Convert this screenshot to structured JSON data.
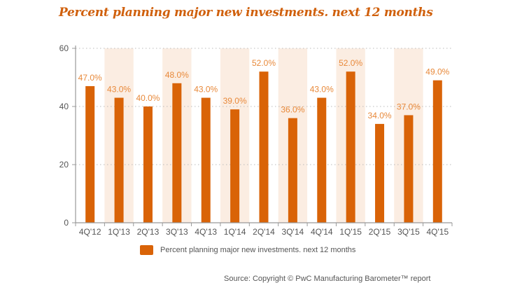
{
  "chart_data": {
    "type": "bar",
    "title": "Percent planning major new investments. next 12 months",
    "categories": [
      "4Q'12",
      "1Q'13",
      "2Q'13",
      "3Q'13",
      "4Q'13",
      "1Q'14",
      "2Q'14",
      "3Q'14",
      "4Q'14",
      "1Q'15",
      "2Q'15",
      "3Q'15",
      "4Q'15"
    ],
    "series": [
      {
        "name": "Percent planning major new investments. next 12 months",
        "values": [
          47.0,
          43.0,
          40.0,
          48.0,
          43.0,
          39.0,
          52.0,
          36.0,
          43.0,
          52.0,
          34.0,
          37.0,
          49.0
        ],
        "labels": [
          "47.0%",
          "43.0%",
          "40.0%",
          "48.0%",
          "43.0%",
          "39.0%",
          "52.0%",
          "36.0%",
          "43.0%",
          "52.0%",
          "34.0%",
          "37.0%",
          "49.0%"
        ],
        "color": "#d96307"
      }
    ],
    "xlabel": "",
    "ylabel": "",
    "ylim": [
      0,
      60
    ],
    "yticks": [
      "0",
      "20",
      "40",
      "60"
    ],
    "ytick_values": [
      0,
      20,
      40,
      60
    ],
    "grid": true,
    "legend_position": "bottom-center",
    "band_color": "#fbede2",
    "label_color": "#e8893a"
  },
  "source": "Source: Copyright © PwC Manufacturing Barometer™ report"
}
